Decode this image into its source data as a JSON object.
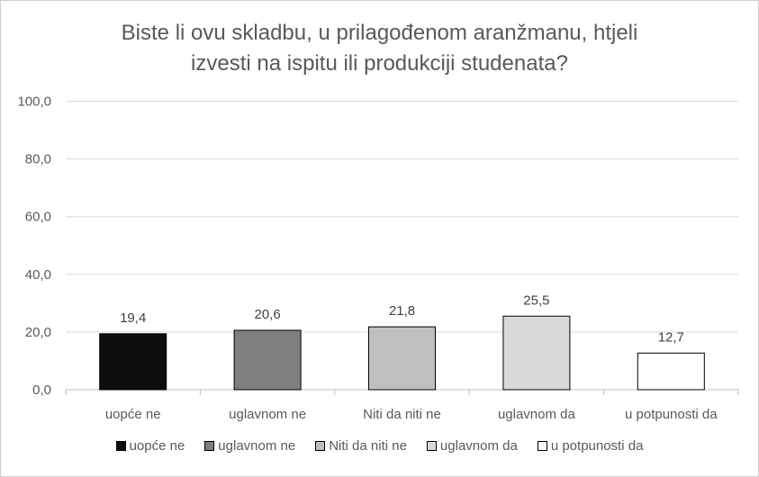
{
  "chart_data": {
    "type": "bar",
    "title_lines": [
      "Biste li ovu skladbu, u prilagođenom aranžmanu, htjeli",
      "izvesti na ispitu ili produkciji studenata?"
    ],
    "categories": [
      "uopće ne",
      "uglavnom ne",
      "Niti da niti ne",
      "uglavnom da",
      "u potpunosti da"
    ],
    "values": [
      19.4,
      20.6,
      21.8,
      25.5,
      12.7
    ],
    "value_labels": [
      "19,4",
      "20,6",
      "21,8",
      "25,5",
      "12,7"
    ],
    "colors": [
      "#0d0d0d",
      "#7f7f7f",
      "#bfbfbf",
      "#d9d9d9",
      "#ffffff"
    ],
    "ylim": [
      0,
      100
    ],
    "y_ticks": [
      0,
      20,
      40,
      60,
      80,
      100
    ],
    "y_tick_labels": [
      "0,0",
      "20,0",
      "40,0",
      "60,0",
      "80,0",
      "100,0"
    ],
    "grid": true,
    "legend_position": "bottom",
    "legend": [
      "uopće ne",
      "uglavnom ne",
      "Niti da niti ne",
      "uglavnom da",
      "u potpunosti da"
    ]
  }
}
